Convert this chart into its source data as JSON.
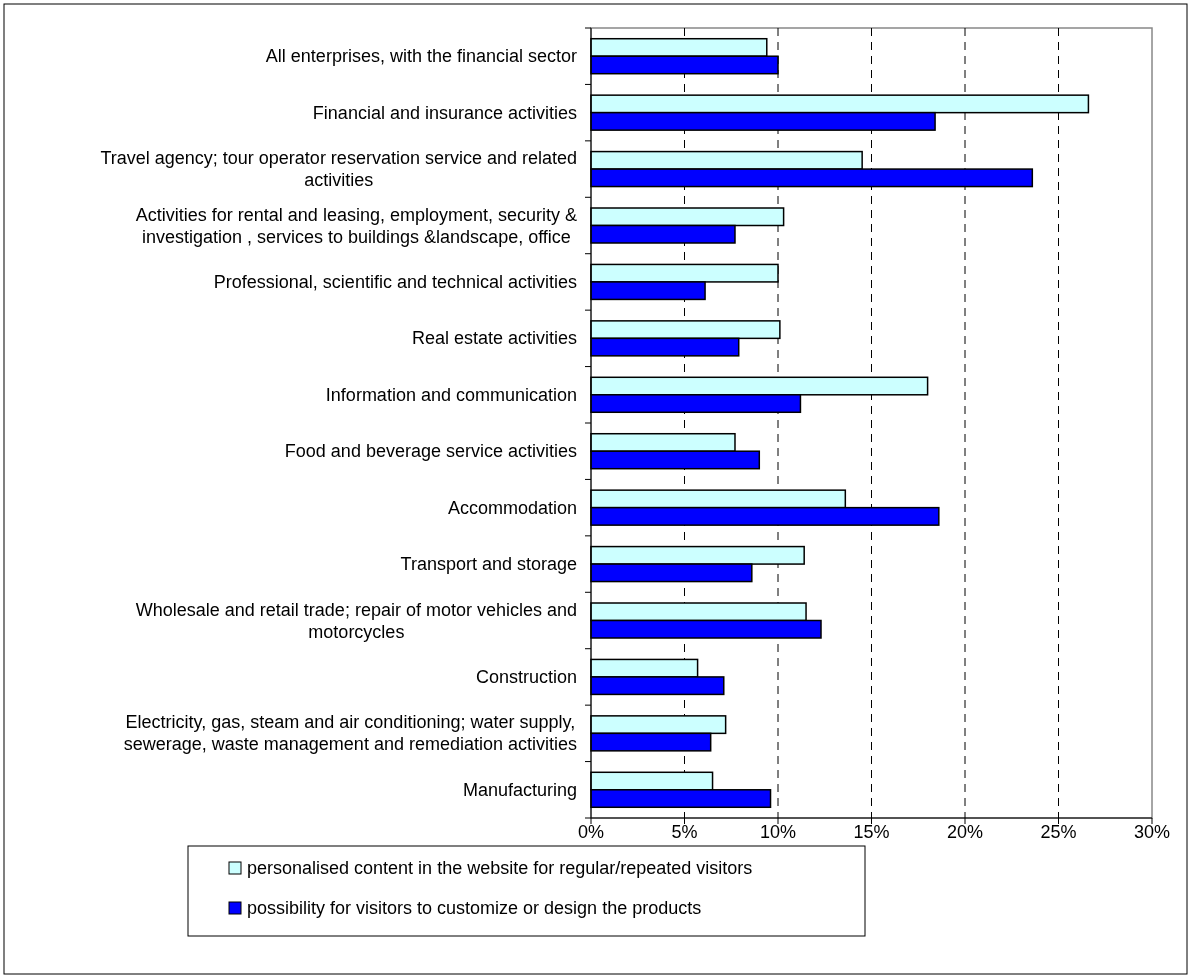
{
  "chart_data": {
    "type": "bar",
    "orientation": "horizontal",
    "categories": [
      "All enterprises, with the financial sector",
      "Financial and insurance activities",
      "Travel agency; tour operator reservation service and related activities",
      "Activities for rental and leasing, employment, security & investigation , services to buildings &landscape, office",
      "Professional, scientific and technical activities",
      "Real estate activities",
      "Information and communication",
      "Food and beverage service activities",
      "Accommodation",
      "Transport and storage",
      "Wholesale and retail trade; repair of motor vehicles and motorcycles",
      "Construction",
      "Electricity, gas, steam and air conditioning; water supply, sewerage, waste management and remediation activities",
      "Manufacturing"
    ],
    "series": [
      {
        "name": "personalised content in the website for regular/repeated visitors",
        "color": "#ccffff",
        "values": [
          9.4,
          26.6,
          14.5,
          10.3,
          10.0,
          10.1,
          18.0,
          7.7,
          13.6,
          11.4,
          11.5,
          5.7,
          7.2,
          6.5
        ]
      },
      {
        "name": "possibility for visitors to customize or design the products",
        "color": "#0000ff",
        "values": [
          10.0,
          18.4,
          23.6,
          7.7,
          6.1,
          7.9,
          11.2,
          9.0,
          18.6,
          8.6,
          12.3,
          7.1,
          6.4,
          9.6
        ]
      }
    ],
    "xlim": [
      0,
      30
    ],
    "xticks": [
      {
        "value": 0,
        "label": "0%"
      },
      {
        "value": 5,
        "label": "5%"
      },
      {
        "value": 10,
        "label": "10%"
      },
      {
        "value": 15,
        "label": "15%"
      },
      {
        "value": 20,
        "label": "20%"
      },
      {
        "value": 25,
        "label": "25%"
      },
      {
        "value": 30,
        "label": "30%"
      }
    ],
    "grid": "x",
    "legend": "bottom"
  }
}
